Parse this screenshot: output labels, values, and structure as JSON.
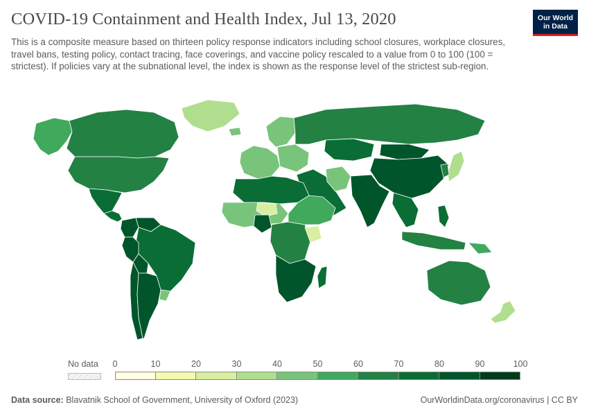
{
  "header": {
    "title": "COVID-19 Containment and Health Index, Jul 13, 2020",
    "subtitle": "This is a composite measure based on thirteen policy response indicators including school closures, workplace closures, travel bans, testing policy, contact tracing, face coverings, and vaccine policy rescaled to a value from 0 to 100 (100 = strictest). If policies vary at the subnational level, the index is shown as the response level of the strictest sub-region."
  },
  "logo": {
    "line1": "Our World",
    "line2": "in Data"
  },
  "legend": {
    "no_data_label": "No data",
    "ticks": [
      "0",
      "10",
      "20",
      "30",
      "40",
      "50",
      "60",
      "70",
      "80",
      "90",
      "100"
    ],
    "colors": [
      "#fefee3",
      "#f4faaf",
      "#d9eea0",
      "#b0de8f",
      "#78c47b",
      "#40a95c",
      "#238144",
      "#0a6d35",
      "#00552a",
      "#003b1c"
    ]
  },
  "footer": {
    "source_label": "Data source:",
    "source_text": "Blavatnik School of Government, University of Oxford (2023)",
    "right_text": "OurWorldinData.org/coronavirus | CC BY"
  },
  "map": {
    "no_data_color": "#e6e6e6",
    "regions": [
      {
        "name": "Alaska",
        "value": 58
      },
      {
        "name": "Canada",
        "value": 68
      },
      {
        "name": "United States",
        "value": 66
      },
      {
        "name": "Greenland",
        "value": 32
      },
      {
        "name": "Mexico",
        "value": 70
      },
      {
        "name": "Central America",
        "value": 78
      },
      {
        "name": "Colombia",
        "value": 86
      },
      {
        "name": "Venezuela",
        "value": 80
      },
      {
        "name": "Brazil",
        "value": 76
      },
      {
        "name": "Peru",
        "value": 82
      },
      {
        "name": "Bolivia",
        "value": 80
      },
      {
        "name": "Chile",
        "value": 80
      },
      {
        "name": "Argentina",
        "value": 82
      },
      {
        "name": "Uruguay",
        "value": 44
      },
      {
        "name": "Iceland",
        "value": 40
      },
      {
        "name": "Scandinavia",
        "value": 46
      },
      {
        "name": "Western Europe",
        "value": 48
      },
      {
        "name": "Eastern Europe",
        "value": 44
      },
      {
        "name": "Russia",
        "value": 62
      },
      {
        "name": "Kazakhstan",
        "value": 76
      },
      {
        "name": "Mongolia",
        "value": 80
      },
      {
        "name": "China",
        "value": 84
      },
      {
        "name": "Middle East",
        "value": 70
      },
      {
        "name": "Iran",
        "value": 40
      },
      {
        "name": "India",
        "value": 84
      },
      {
        "name": "Southeast Asia",
        "value": 78
      },
      {
        "name": "Japan",
        "value": 36
      },
      {
        "name": "Korea",
        "value": 60
      },
      {
        "name": "North Africa",
        "value": 70
      },
      {
        "name": "Sahel",
        "value": 40
      },
      {
        "name": "Mali-Niger",
        "value": 22
      },
      {
        "name": "Nigeria",
        "value": 88
      },
      {
        "name": "Central Africa",
        "value": 66
      },
      {
        "name": "East Africa",
        "value": 58
      },
      {
        "name": "Kenya",
        "value": 20
      },
      {
        "name": "Southern Africa",
        "value": 80
      },
      {
        "name": "Madagascar",
        "value": 76
      },
      {
        "name": "Indonesia",
        "value": 62
      },
      {
        "name": "Philippines",
        "value": 78
      },
      {
        "name": "Papua New Guinea",
        "value": 50
      },
      {
        "name": "Australia",
        "value": 68
      },
      {
        "name": "New Zealand",
        "value": 36
      }
    ]
  }
}
